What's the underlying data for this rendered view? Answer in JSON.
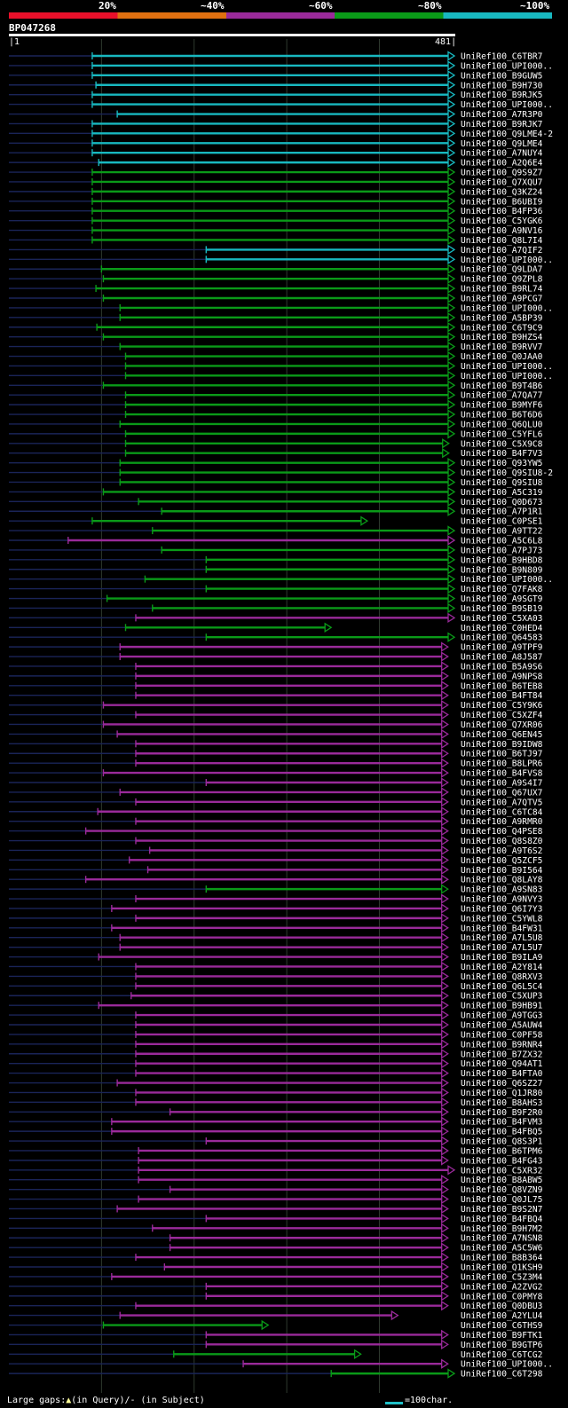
{
  "query": {
    "id": "BP047268",
    "start": "1",
    "end": "481"
  },
  "legend": {
    "labels": [
      "20%",
      "~40%",
      "~60%",
      "~80%",
      "~100%"
    ],
    "colors": [
      "#e8102a",
      "#e07010",
      "#9a2a9a",
      "#0a9a18",
      "#18b8c0"
    ]
  },
  "footer": {
    "gaps": "Large gaps:",
    "q": "(in Query)/- (in Subject)",
    "scale": "=100char."
  },
  "chart_data": {
    "type": "alignment",
    "query_length": 481,
    "scale": "100 characters",
    "hits": [
      {
        "name": "UniRef100_C6TBR7",
        "s": 90,
        "e": 481,
        "c": 4
      },
      {
        "name": "UniRef100_UPI000..",
        "s": 90,
        "e": 481,
        "c": 4
      },
      {
        "name": "UniRef100_B9GUW5",
        "s": 90,
        "e": 481,
        "c": 4
      },
      {
        "name": "UniRef100_B9H730",
        "s": 94,
        "e": 481,
        "c": 4
      },
      {
        "name": "UniRef100_B9RJK5",
        "s": 90,
        "e": 481,
        "c": 4
      },
      {
        "name": "UniRef100_UPI000..",
        "s": 90,
        "e": 481,
        "c": 4
      },
      {
        "name": "UniRef100_A7R3P0",
        "s": 117,
        "e": 481,
        "c": 4
      },
      {
        "name": "UniRef100_B9RJK7",
        "s": 90,
        "e": 481,
        "c": 4
      },
      {
        "name": "UniRef100_Q9LME4-2",
        "s": 90,
        "e": 481,
        "c": 4
      },
      {
        "name": "UniRef100_Q9LME4",
        "s": 90,
        "e": 481,
        "c": 4
      },
      {
        "name": "UniRef100_A7NUY4",
        "s": 90,
        "e": 481,
        "c": 4
      },
      {
        "name": "UniRef100_A2Q6E4",
        "s": 97,
        "e": 481,
        "c": 4
      },
      {
        "name": "UniRef100_Q9S9Z7",
        "s": 90,
        "e": 481,
        "c": 3
      },
      {
        "name": "UniRef100_Q7XQU7",
        "s": 90,
        "e": 481,
        "c": 3
      },
      {
        "name": "UniRef100_Q3KZ24",
        "s": 90,
        "e": 481,
        "c": 3
      },
      {
        "name": "UniRef100_B6UBI9",
        "s": 90,
        "e": 481,
        "c": 3
      },
      {
        "name": "UniRef100_B4FP36",
        "s": 90,
        "e": 481,
        "c": 3
      },
      {
        "name": "UniRef100_C5YGK6",
        "s": 90,
        "e": 481,
        "c": 3
      },
      {
        "name": "UniRef100_A9NV16",
        "s": 90,
        "e": 481,
        "c": 3
      },
      {
        "name": "UniRef100_Q8L7I4",
        "s": 90,
        "e": 481,
        "c": 3
      },
      {
        "name": "UniRef100_A7QIF2",
        "s": 213,
        "e": 481,
        "c": 4
      },
      {
        "name": "UniRef100_UPI000..",
        "s": 213,
        "e": 481,
        "c": 4
      },
      {
        "name": "UniRef100_Q9LDA7",
        "s": 100,
        "e": 481,
        "c": 3
      },
      {
        "name": "UniRef100_Q9ZPL8",
        "s": 102,
        "e": 481,
        "c": 3
      },
      {
        "name": "UniRef100_B9RL74",
        "s": 94,
        "e": 481,
        "c": 3
      },
      {
        "name": "UniRef100_A9PCG7",
        "s": 102,
        "e": 481,
        "c": 3
      },
      {
        "name": "UniRef100_UPI000..",
        "s": 120,
        "e": 481,
        "c": 3
      },
      {
        "name": "UniRef100_A5BP39",
        "s": 120,
        "e": 481,
        "c": 3
      },
      {
        "name": "UniRef100_C6T9C9",
        "s": 95,
        "e": 481,
        "c": 3
      },
      {
        "name": "UniRef100_B9HZS4",
        "s": 102,
        "e": 481,
        "c": 3
      },
      {
        "name": "UniRef100_B9RVV7",
        "s": 120,
        "e": 481,
        "c": 3
      },
      {
        "name": "UniRef100_Q0JAA0",
        "s": 126,
        "e": 481,
        "c": 3
      },
      {
        "name": "UniRef100_UPI000..",
        "s": 126,
        "e": 481,
        "c": 3
      },
      {
        "name": "UniRef100_UPI000..",
        "s": 126,
        "e": 481,
        "c": 3
      },
      {
        "name": "UniRef100_B9T4B6",
        "s": 102,
        "e": 481,
        "c": 3
      },
      {
        "name": "UniRef100_A7QA77",
        "s": 126,
        "e": 481,
        "c": 3
      },
      {
        "name": "UniRef100_B9MYF6",
        "s": 126,
        "e": 481,
        "c": 3
      },
      {
        "name": "UniRef100_B6T6D6",
        "s": 126,
        "e": 481,
        "c": 3
      },
      {
        "name": "UniRef100_Q6QLU0",
        "s": 120,
        "e": 481,
        "c": 3
      },
      {
        "name": "UniRef100_C5YFL6",
        "s": 126,
        "e": 481,
        "c": 3
      },
      {
        "name": "UniRef100_C5X9C8",
        "s": 126,
        "e": 475,
        "c": 3
      },
      {
        "name": "UniRef100_B4F7V3",
        "s": 126,
        "e": 475,
        "c": 3
      },
      {
        "name": "UniRef100_Q93YW5",
        "s": 120,
        "e": 481,
        "c": 3
      },
      {
        "name": "UniRef100_Q9SIU8-2",
        "s": 120,
        "e": 481,
        "c": 3
      },
      {
        "name": "UniRef100_Q9SIU8",
        "s": 120,
        "e": 481,
        "c": 3
      },
      {
        "name": "UniRef100_A5C319",
        "s": 102,
        "e": 481,
        "c": 3
      },
      {
        "name": "UniRef100_Q0D673",
        "s": 140,
        "e": 481,
        "c": 3
      },
      {
        "name": "UniRef100_A7P1R1",
        "s": 165,
        "e": 481,
        "c": 3
      },
      {
        "name": "UniRef100_C0PSE1",
        "s": 90,
        "e": 387,
        "c": 3
      },
      {
        "name": "UniRef100_A9TT22",
        "s": 155,
        "e": 481,
        "c": 3
      },
      {
        "name": "UniRef100_A5C6L8",
        "s": 64,
        "e": 481,
        "c": 2
      },
      {
        "name": "UniRef100_A7PJ73",
        "s": 165,
        "e": 481,
        "c": 3
      },
      {
        "name": "UniRef100_B9HBD8",
        "s": 213,
        "e": 481,
        "c": 3
      },
      {
        "name": "UniRef100_B9N809",
        "s": 213,
        "e": 481,
        "c": 3
      },
      {
        "name": "UniRef100_UPI000..",
        "s": 147,
        "e": 481,
        "c": 3
      },
      {
        "name": "UniRef100_Q7FAK8",
        "s": 213,
        "e": 481,
        "c": 3
      },
      {
        "name": "UniRef100_A9SGT9",
        "s": 106,
        "e": 481,
        "c": 3
      },
      {
        "name": "UniRef100_B9SB19",
        "s": 155,
        "e": 481,
        "c": 3
      },
      {
        "name": "UniRef100_C5XA03",
        "s": 137,
        "e": 481,
        "c": 2
      },
      {
        "name": "UniRef100_C0HED4",
        "s": 126,
        "e": 348,
        "c": 3
      },
      {
        "name": "UniRef100_Q64583",
        "s": 213,
        "e": 481,
        "c": 3
      },
      {
        "name": "UniRef100_A9TPF9",
        "s": 120,
        "e": 474,
        "c": 2
      },
      {
        "name": "UniRef100_A8J587",
        "s": 120,
        "e": 474,
        "c": 2
      },
      {
        "name": "UniRef100_B5A9S6",
        "s": 137,
        "e": 474,
        "c": 2
      },
      {
        "name": "UniRef100_A9NPS8",
        "s": 137,
        "e": 474,
        "c": 2
      },
      {
        "name": "UniRef100_B6TEB8",
        "s": 137,
        "e": 474,
        "c": 2
      },
      {
        "name": "UniRef100_B4FT84",
        "s": 137,
        "e": 474,
        "c": 2
      },
      {
        "name": "UniRef100_C5Y9K6",
        "s": 102,
        "e": 474,
        "c": 2
      },
      {
        "name": "UniRef100_C5XZF4",
        "s": 137,
        "e": 474,
        "c": 2
      },
      {
        "name": "UniRef100_Q7XR06",
        "s": 102,
        "e": 474,
        "c": 2
      },
      {
        "name": "UniRef100_Q6EN45",
        "s": 117,
        "e": 474,
        "c": 2
      },
      {
        "name": "UniRef100_B9IDW8",
        "s": 137,
        "e": 474,
        "c": 2
      },
      {
        "name": "UniRef100_B6TJ97",
        "s": 137,
        "e": 474,
        "c": 2
      },
      {
        "name": "UniRef100_B8LPR6",
        "s": 137,
        "e": 474,
        "c": 2
      },
      {
        "name": "UniRef100_B4FVS8",
        "s": 102,
        "e": 474,
        "c": 2
      },
      {
        "name": "UniRef100_A9S4I7",
        "s": 213,
        "e": 474,
        "c": 2
      },
      {
        "name": "UniRef100_Q67UX7",
        "s": 120,
        "e": 474,
        "c": 2
      },
      {
        "name": "UniRef100_A7QTV5",
        "s": 137,
        "e": 474,
        "c": 2
      },
      {
        "name": "UniRef100_C6TC84",
        "s": 96,
        "e": 474,
        "c": 2
      },
      {
        "name": "UniRef100_A9RMR0",
        "s": 137,
        "e": 474,
        "c": 2
      },
      {
        "name": "UniRef100_Q4PSE8",
        "s": 83,
        "e": 474,
        "c": 2
      },
      {
        "name": "UniRef100_Q8S8Z0",
        "s": 137,
        "e": 474,
        "c": 2
      },
      {
        "name": "UniRef100_A9T6S2",
        "s": 152,
        "e": 474,
        "c": 2
      },
      {
        "name": "UniRef100_Q5ZCF5",
        "s": 130,
        "e": 474,
        "c": 2
      },
      {
        "name": "UniRef100_B9I564",
        "s": 150,
        "e": 474,
        "c": 2
      },
      {
        "name": "UniRef100_Q8LAY8",
        "s": 83,
        "e": 474,
        "c": 2
      },
      {
        "name": "UniRef100_A9SN83",
        "s": 213,
        "e": 474,
        "c": 3
      },
      {
        "name": "UniRef100_A9NVY3",
        "s": 137,
        "e": 474,
        "c": 2
      },
      {
        "name": "UniRef100_Q6I7Y3",
        "s": 111,
        "e": 474,
        "c": 2
      },
      {
        "name": "UniRef100_C5YWL8",
        "s": 137,
        "e": 474,
        "c": 2
      },
      {
        "name": "UniRef100_B4FW31",
        "s": 111,
        "e": 474,
        "c": 2
      },
      {
        "name": "UniRef100_A7L5U8",
        "s": 120,
        "e": 474,
        "c": 2
      },
      {
        "name": "UniRef100_A7L5U7",
        "s": 120,
        "e": 474,
        "c": 2
      },
      {
        "name": "UniRef100_B9ILA9",
        "s": 97,
        "e": 474,
        "c": 2
      },
      {
        "name": "UniRef100_A2Y814",
        "s": 137,
        "e": 474,
        "c": 2
      },
      {
        "name": "UniRef100_Q8RXV3",
        "s": 137,
        "e": 474,
        "c": 2
      },
      {
        "name": "UniRef100_Q6L5C4",
        "s": 137,
        "e": 474,
        "c": 2
      },
      {
        "name": "UniRef100_C5XUP3",
        "s": 132,
        "e": 474,
        "c": 2
      },
      {
        "name": "UniRef100_B9HB91",
        "s": 97,
        "e": 474,
        "c": 2
      },
      {
        "name": "UniRef100_A9TGG3",
        "s": 137,
        "e": 474,
        "c": 2
      },
      {
        "name": "UniRef100_A5AUW4",
        "s": 137,
        "e": 474,
        "c": 2
      },
      {
        "name": "UniRef100_C0PF58",
        "s": 137,
        "e": 474,
        "c": 2
      },
      {
        "name": "UniRef100_B9RNR4",
        "s": 137,
        "e": 474,
        "c": 2
      },
      {
        "name": "UniRef100_B7ZX32",
        "s": 137,
        "e": 474,
        "c": 2
      },
      {
        "name": "UniRef100_Q94AT1",
        "s": 137,
        "e": 474,
        "c": 2
      },
      {
        "name": "UniRef100_B4FTA0",
        "s": 137,
        "e": 474,
        "c": 2
      },
      {
        "name": "UniRef100_Q6SZ27",
        "s": 117,
        "e": 474,
        "c": 2
      },
      {
        "name": "UniRef100_Q1JR80",
        "s": 137,
        "e": 474,
        "c": 2
      },
      {
        "name": "UniRef100_B8AHS3",
        "s": 137,
        "e": 474,
        "c": 2
      },
      {
        "name": "UniRef100_B9F2R0",
        "s": 174,
        "e": 474,
        "c": 2
      },
      {
        "name": "UniRef100_B4FVM3",
        "s": 111,
        "e": 474,
        "c": 2
      },
      {
        "name": "UniRef100_B4FBQ5",
        "s": 111,
        "e": 474,
        "c": 2
      },
      {
        "name": "UniRef100_Q8S3P1",
        "s": 213,
        "e": 474,
        "c": 2
      },
      {
        "name": "UniRef100_B6TPM6",
        "s": 140,
        "e": 474,
        "c": 2
      },
      {
        "name": "UniRef100_B4FG43",
        "s": 140,
        "e": 474,
        "c": 2
      },
      {
        "name": "UniRef100_C5XR32",
        "s": 140,
        "e": 481,
        "c": 2
      },
      {
        "name": "UniRef100_B8ABW5",
        "s": 140,
        "e": 474,
        "c": 2
      },
      {
        "name": "UniRef100_Q8VZN9",
        "s": 174,
        "e": 474,
        "c": 2
      },
      {
        "name": "UniRef100_Q0JL75",
        "s": 140,
        "e": 474,
        "c": 2
      },
      {
        "name": "UniRef100_B9S2N7",
        "s": 117,
        "e": 474,
        "c": 2
      },
      {
        "name": "UniRef100_B4FBQ4",
        "s": 213,
        "e": 474,
        "c": 2
      },
      {
        "name": "UniRef100_B9H7M2",
        "s": 155,
        "e": 474,
        "c": 2
      },
      {
        "name": "UniRef100_A7NSN8",
        "s": 174,
        "e": 474,
        "c": 2
      },
      {
        "name": "UniRef100_A5C5W6",
        "s": 174,
        "e": 474,
        "c": 2
      },
      {
        "name": "UniRef100_B8B364",
        "s": 137,
        "e": 474,
        "c": 2
      },
      {
        "name": "UniRef100_Q1KSH9",
        "s": 168,
        "e": 474,
        "c": 2
      },
      {
        "name": "UniRef100_C5Z3M4",
        "s": 111,
        "e": 474,
        "c": 2
      },
      {
        "name": "UniRef100_A2ZVG2",
        "s": 213,
        "e": 474,
        "c": 2
      },
      {
        "name": "UniRef100_C0PMY8",
        "s": 213,
        "e": 474,
        "c": 2
      },
      {
        "name": "UniRef100_Q0DBU3",
        "s": 137,
        "e": 474,
        "c": 2
      },
      {
        "name": "UniRef100_A2YLU4",
        "s": 120,
        "e": 420,
        "c": 2
      },
      {
        "name": "UniRef100_C6THS9",
        "s": 102,
        "e": 280,
        "c": 3
      },
      {
        "name": "UniRef100_B9FTK1",
        "s": 213,
        "e": 474,
        "c": 2
      },
      {
        "name": "UniRef100_B9GTP6",
        "s": 213,
        "e": 474,
        "c": 2
      },
      {
        "name": "UniRef100_C6TCG2",
        "s": 178,
        "e": 380,
        "c": 3
      },
      {
        "name": "UniRef100_UPI000..",
        "s": 253,
        "e": 474,
        "c": 2
      },
      {
        "name": "UniRef100_C6T298",
        "s": 348,
        "e": 481,
        "c": 3
      }
    ]
  }
}
